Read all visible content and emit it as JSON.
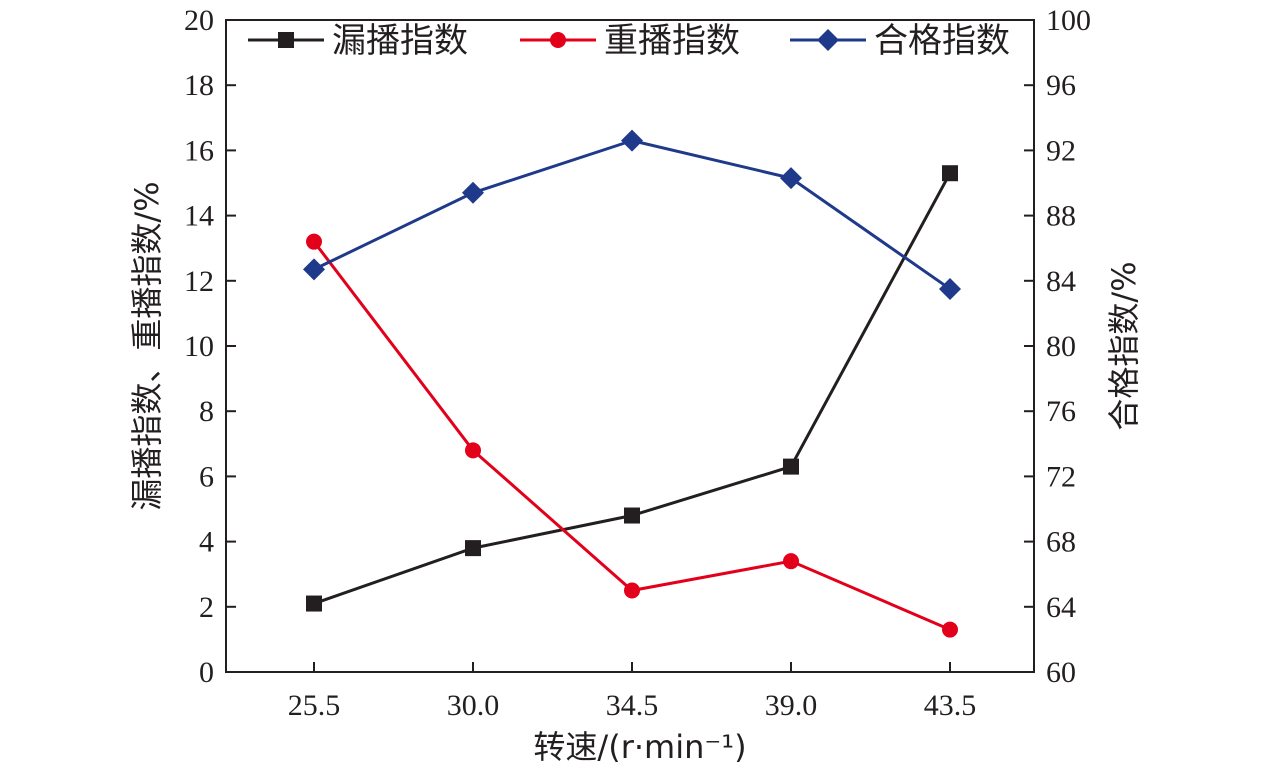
{
  "chart_data": {
    "type": "line",
    "categories": [
      "25.5",
      "30.0",
      "34.5",
      "39.0",
      "43.5"
    ],
    "xlabel": "转速/(r·min⁻¹)",
    "ylabel_left": "漏播指数、重播指数/%",
    "ylabel_right": "合格指数/%",
    "ylim_left": [
      0,
      20
    ],
    "yticks_left": [
      "0",
      "2",
      "4",
      "6",
      "8",
      "10",
      "12",
      "14",
      "16",
      "18",
      "20"
    ],
    "ylim_right": [
      60,
      100
    ],
    "yticks_right": [
      "60",
      "64",
      "68",
      "72",
      "76",
      "80",
      "84",
      "88",
      "92",
      "96",
      "100"
    ],
    "legend_position": "top",
    "grid": false,
    "series": [
      {
        "name": "漏播指数",
        "axis": "left",
        "color": "#231f20",
        "marker": "square",
        "values": [
          2.1,
          3.8,
          4.8,
          6.3,
          15.3
        ]
      },
      {
        "name": "重播指数",
        "axis": "left",
        "color": "#e3001b",
        "marker": "circle",
        "values": [
          13.2,
          6.8,
          2.5,
          3.4,
          1.3
        ]
      },
      {
        "name": "合格指数",
        "axis": "right",
        "color": "#1f3a8a",
        "marker": "diamond",
        "values": [
          84.7,
          89.4,
          92.6,
          90.3,
          83.5
        ]
      }
    ]
  }
}
